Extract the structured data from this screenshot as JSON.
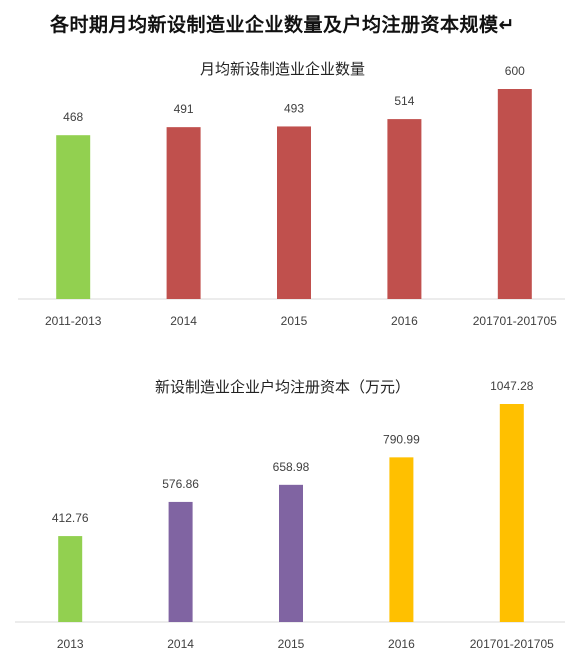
{
  "title": "各时期月均新设制造业企业数量及户均注册资本规模↵",
  "chart_data": [
    {
      "type": "bar",
      "title": "月均新设制造业企业数量",
      "categories": [
        "2011-2013",
        "2014",
        "2015",
        "2016",
        "201701-201705"
      ],
      "values": [
        468,
        491,
        493,
        514,
        600
      ],
      "value_labels": [
        "468",
        "491",
        "493",
        "514",
        "600"
      ],
      "bar_colors": [
        "#92d050",
        "#c0504d",
        "#c0504d",
        "#c0504d",
        "#c0504d"
      ],
      "xlabel": "",
      "ylabel": "",
      "ylim": [
        0,
        600
      ],
      "grid": false,
      "axis_color": "#d9d9d9"
    },
    {
      "type": "bar",
      "title": "新设制造业企业户均注册资本（万元）",
      "categories": [
        "2013",
        "2014",
        "2015",
        "2016",
        "201701-201705"
      ],
      "values": [
        412.76,
        576.86,
        658.98,
        790.99,
        1047.28
      ],
      "value_labels": [
        "412.76",
        "576.86",
        "658.98",
        "790.99",
        "1047.28"
      ],
      "bar_colors": [
        "#92d050",
        "#8064a2",
        "#8064a2",
        "#ffc000",
        "#ffc000"
      ],
      "xlabel": "",
      "ylabel": "",
      "ylim": [
        0,
        1047.28
      ],
      "grid": false,
      "axis_color": "#d9d9d9"
    }
  ]
}
